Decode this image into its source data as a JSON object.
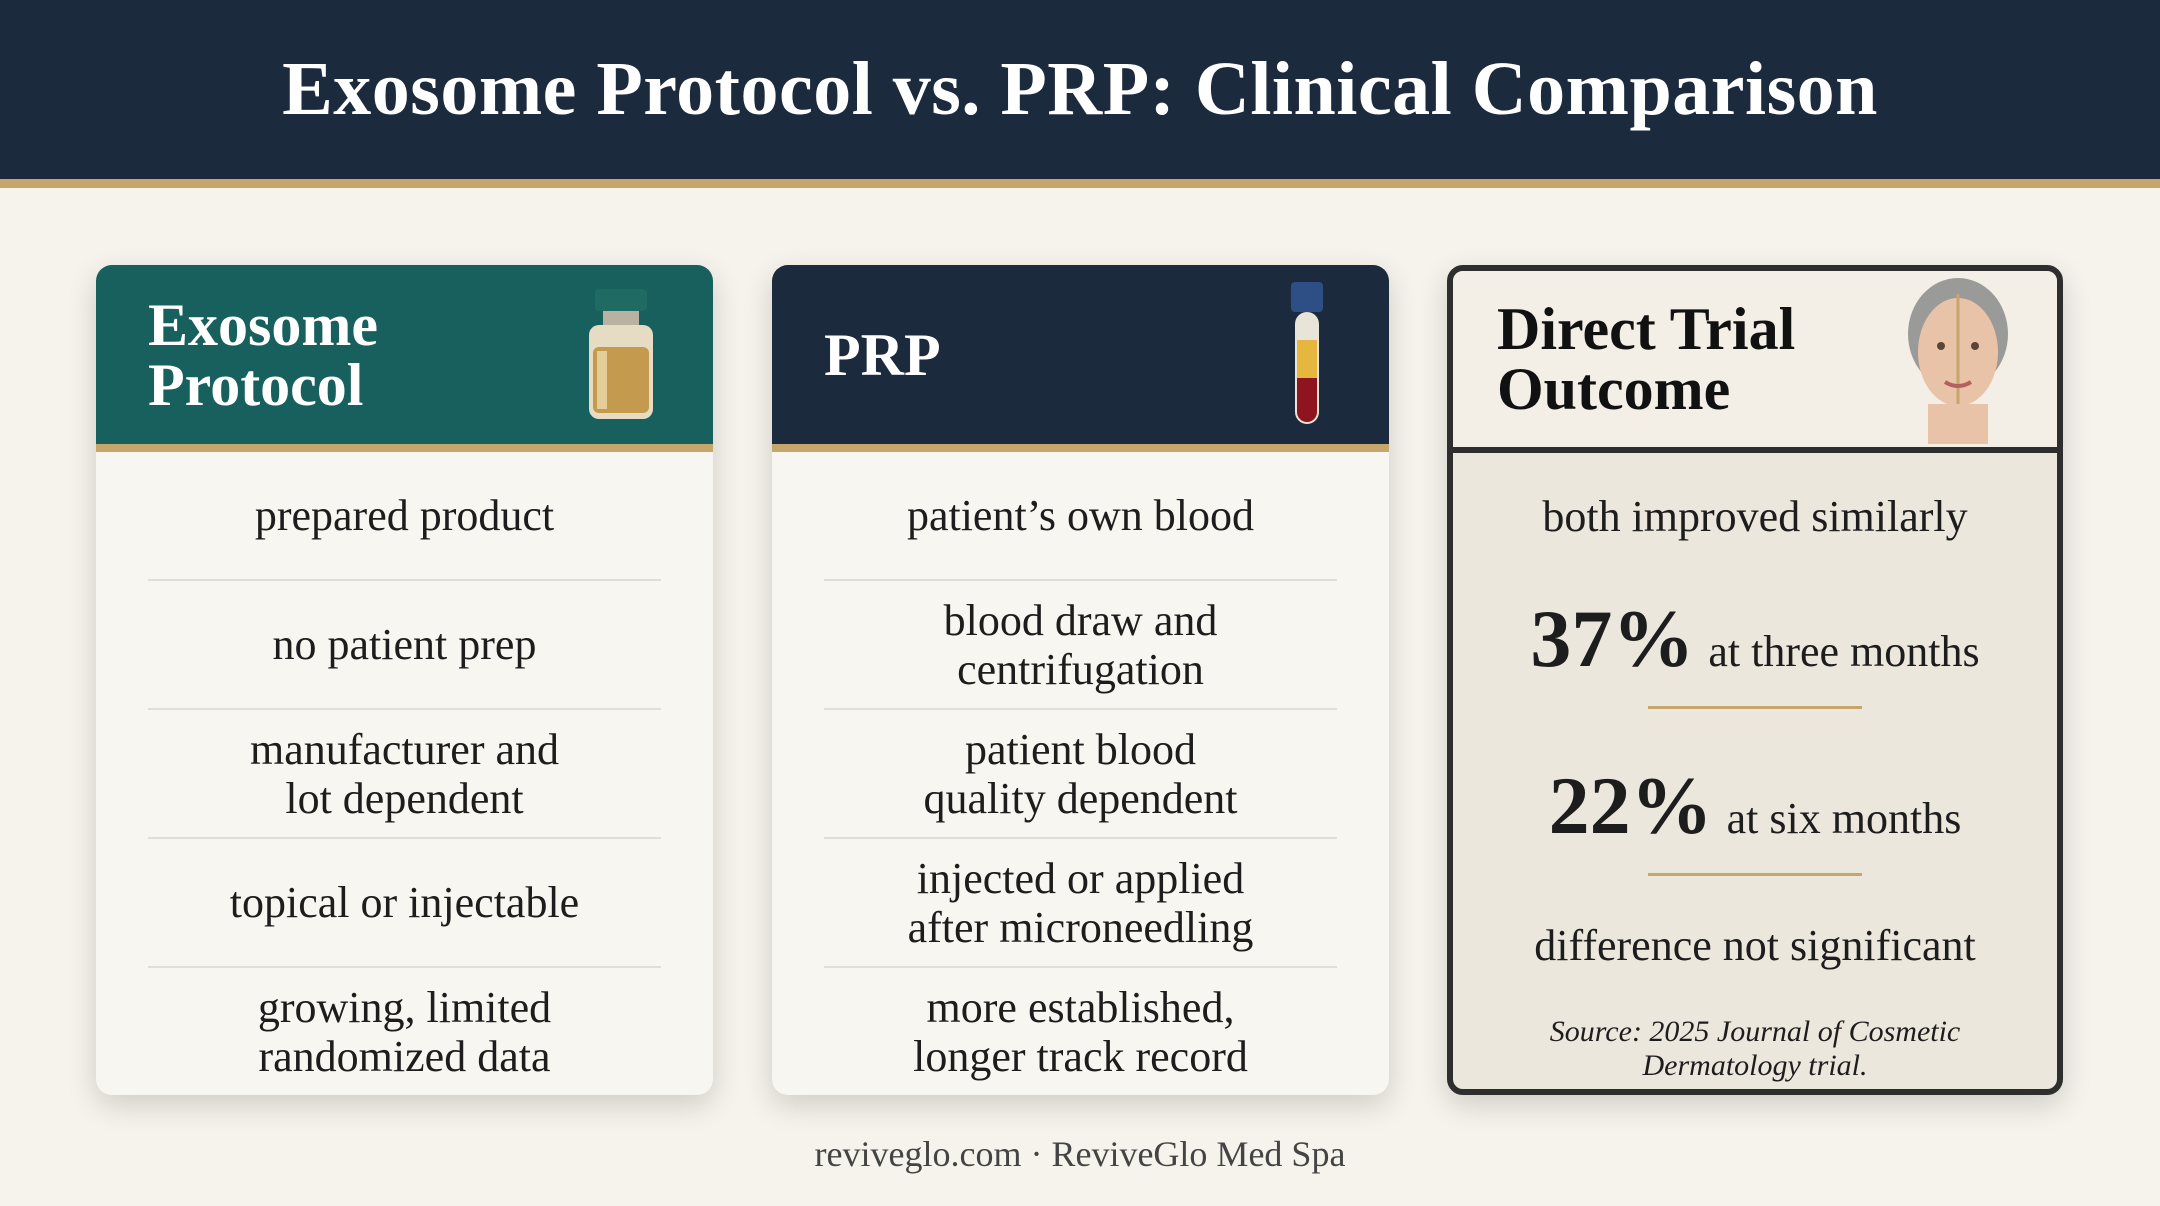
{
  "header": {
    "title": "Exosome Protocol vs. PRP: Clinical Comparison"
  },
  "cards": [
    {
      "title": "Exosome\nProtocol",
      "rows": [
        "prepared product",
        "no patient prep",
        "manufacturer and\nlot dependent",
        "topical or injectable",
        "growing, limited\nrandomized data"
      ]
    },
    {
      "title": "PRP",
      "rows": [
        "patient’s own blood",
        "blood draw and\ncentrifugation",
        "patient blood\nquality dependent",
        "injected or applied\nafter microneedling",
        "more established,\nlonger track record"
      ]
    }
  ],
  "outcome": {
    "title": "Direct Trial\nOutcome",
    "summary": "both improved similarly",
    "stats": [
      {
        "stat": "37%",
        "label": "at three months"
      },
      {
        "stat": "22%",
        "label": "at six months"
      }
    ],
    "conclusion": "difference not significant",
    "source": "Source: 2025 Journal of Cosmetic Dermatology trial."
  },
  "footer": "reviveglo.com · ReviveGlo Med Spa"
}
